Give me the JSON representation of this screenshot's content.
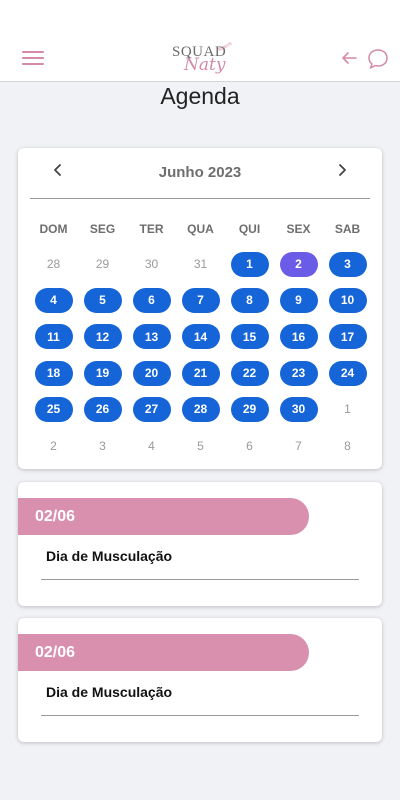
{
  "header": {
    "logo_line1": "SQUAD",
    "logo_line2": "Naty",
    "logo_small": "fitness"
  },
  "page": {
    "title": "Agenda"
  },
  "calendar": {
    "month_label": "Junho 2023",
    "weekdays": [
      "DOM",
      "SEG",
      "TER",
      "QUA",
      "QUI",
      "SEX",
      "SAB"
    ],
    "days": [
      "28",
      "29",
      "30",
      "31",
      "1",
      "2",
      "3",
      "4",
      "5",
      "6",
      "7",
      "8",
      "9",
      "10",
      "11",
      "12",
      "13",
      "14",
      "15",
      "16",
      "17",
      "18",
      "19",
      "20",
      "21",
      "22",
      "23",
      "24",
      "25",
      "26",
      "27",
      "28",
      "29",
      "30",
      "1",
      "2",
      "3",
      "4",
      "5",
      "6",
      "7",
      "8"
    ]
  },
  "events": [
    {
      "date": "02/06",
      "title": "Dia de Musculação"
    },
    {
      "date": "02/06",
      "title": "Dia de Musculação"
    }
  ],
  "colors": {
    "accent_pink": "#d98fae",
    "active_day": "#1565d8",
    "selected_day": "#6b5ce7"
  }
}
